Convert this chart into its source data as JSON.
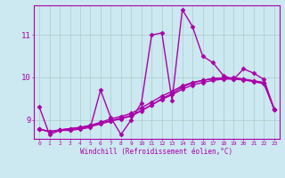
{
  "xlabel": "Windchill (Refroidissement éolien,°C)",
  "xlim": [
    -0.5,
    23.5
  ],
  "ylim": [
    8.55,
    11.7
  ],
  "xticks": [
    0,
    1,
    2,
    3,
    4,
    5,
    6,
    7,
    8,
    9,
    10,
    11,
    12,
    13,
    14,
    15,
    16,
    17,
    18,
    19,
    20,
    21,
    22,
    23
  ],
  "yticks": [
    9,
    10,
    11
  ],
  "bg_color": "#cce8f0",
  "grid_color": "#aacccc",
  "line_color": "#aa00aa",
  "line_width": 1.0,
  "marker": "D",
  "marker_size": 2.5,
  "series": [
    [
      9.3,
      8.65,
      8.75,
      8.75,
      8.78,
      8.82,
      9.7,
      9.05,
      8.65,
      9.0,
      9.4,
      11.0,
      11.05,
      9.45,
      11.6,
      11.2,
      10.5,
      10.35,
      10.05,
      9.95,
      10.2,
      10.1,
      9.95,
      9.25
    ],
    [
      8.78,
      8.72,
      8.76,
      8.79,
      8.82,
      8.86,
      8.92,
      8.98,
      9.04,
      9.1,
      9.22,
      9.35,
      9.5,
      9.62,
      9.77,
      9.87,
      9.93,
      9.97,
      9.98,
      9.98,
      9.96,
      9.92,
      9.88,
      9.25
    ],
    [
      8.78,
      8.72,
      8.76,
      8.79,
      8.82,
      8.87,
      8.94,
      9.02,
      9.08,
      9.15,
      9.28,
      9.42,
      9.56,
      9.67,
      9.8,
      9.88,
      9.93,
      9.97,
      9.99,
      9.99,
      9.96,
      9.91,
      9.87,
      9.25
    ],
    [
      8.78,
      8.72,
      8.75,
      8.77,
      8.8,
      8.84,
      8.9,
      8.97,
      9.02,
      9.09,
      9.21,
      9.35,
      9.48,
      9.59,
      9.72,
      9.82,
      9.88,
      9.93,
      9.96,
      9.96,
      9.94,
      9.9,
      9.85,
      9.25
    ]
  ]
}
